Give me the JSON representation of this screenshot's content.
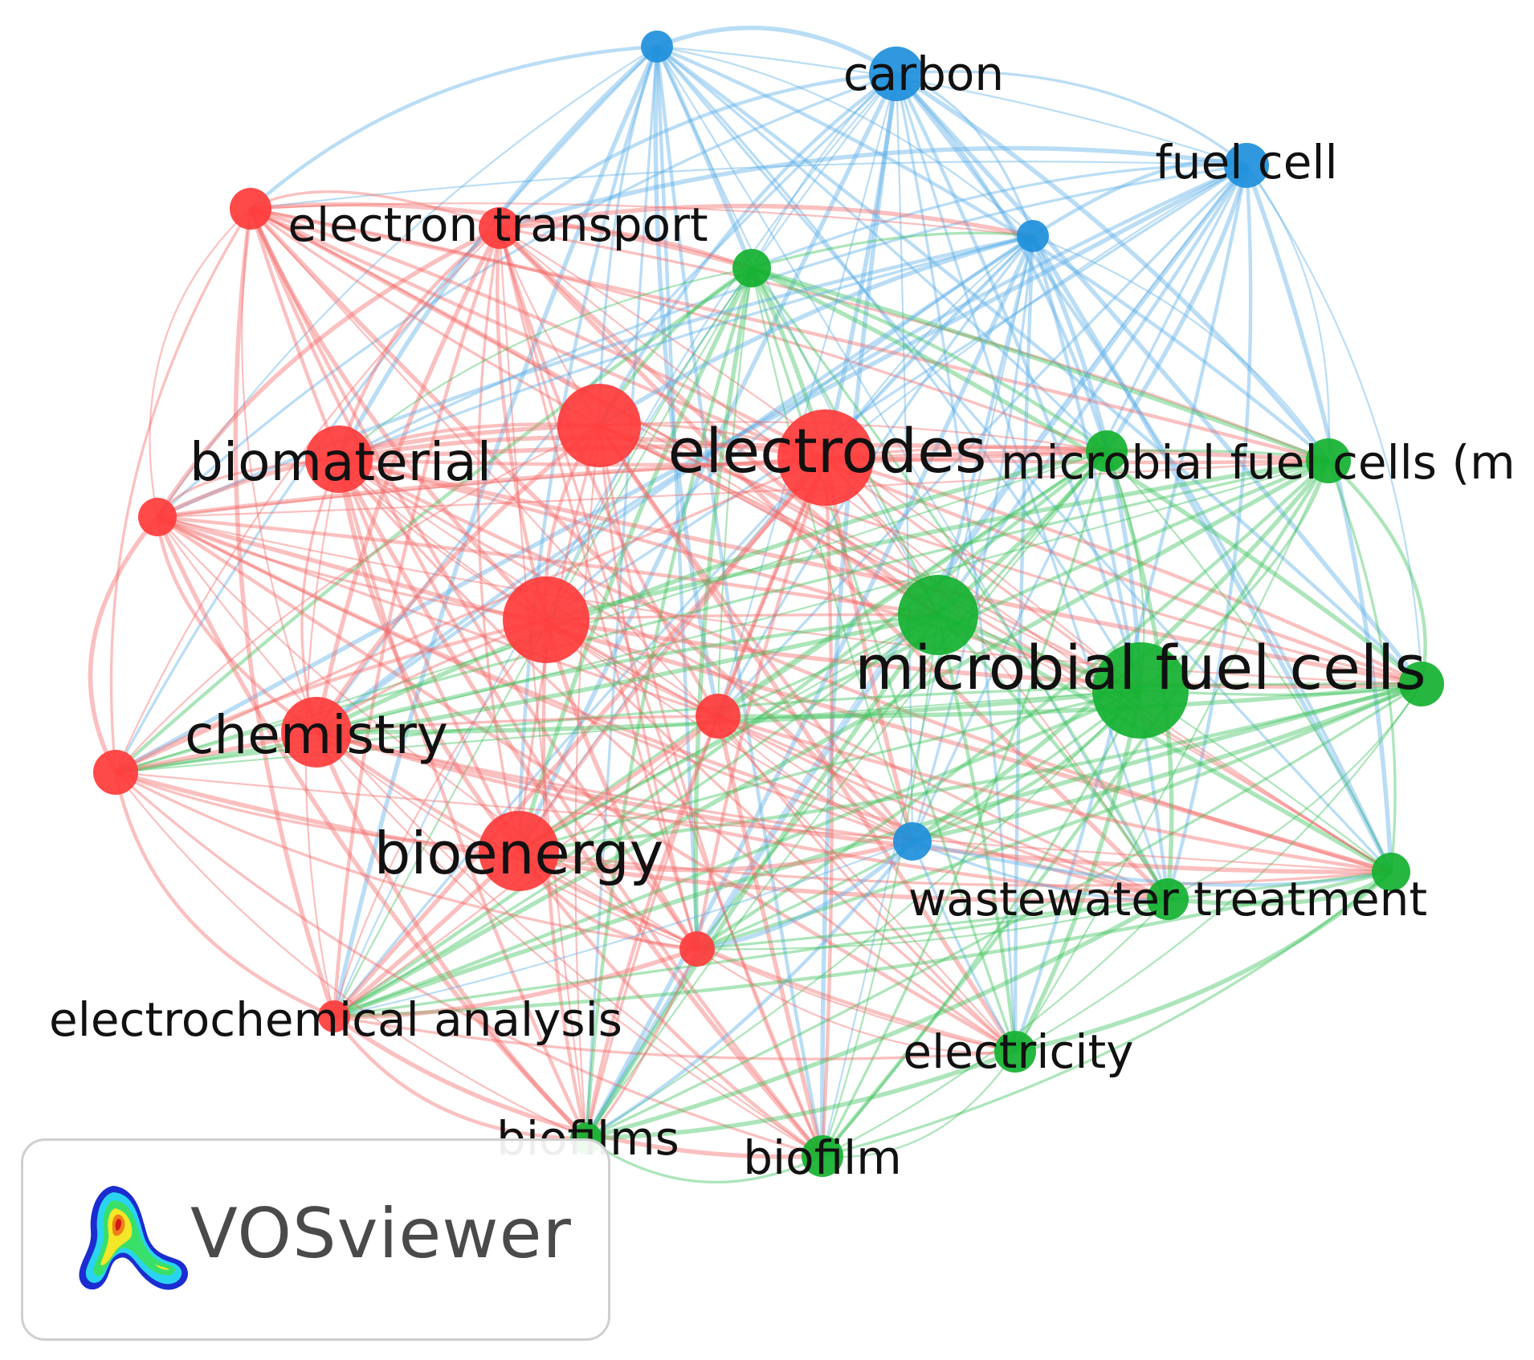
{
  "clusters": [
    {
      "id": "red",
      "color": "#ff3b3b",
      "edge_color": "#f26a66"
    },
    {
      "id": "green",
      "color": "#13b130",
      "edge_color": "#3cc15a"
    },
    {
      "id": "blue",
      "color": "#1e8fdb",
      "edge_color": "#5aaee6"
    }
  ],
  "nodes": [
    {
      "id": "n1",
      "label": "",
      "cluster": "blue",
      "size": 1.0
    },
    {
      "id": "n2",
      "label": "carbon",
      "cluster": "blue",
      "size": 1.7
    },
    {
      "id": "n3",
      "label": "fuel cell",
      "cluster": "blue",
      "size": 1.4
    },
    {
      "id": "n4",
      "label": "electron transport",
      "cluster": "red",
      "size": 1.3
    },
    {
      "id": "n5",
      "label": "",
      "cluster": "red",
      "size": 1.3
    },
    {
      "id": "n6",
      "label": "",
      "cluster": "green",
      "size": 1.2
    },
    {
      "id": "n7",
      "label": "",
      "cluster": "blue",
      "size": 1.0
    },
    {
      "id": "n8",
      "label": "",
      "cluster": "red",
      "size": 2.6
    },
    {
      "id": "n9",
      "label": "electrodes",
      "cluster": "red",
      "size": 3.0
    },
    {
      "id": "n10",
      "label": "biomaterial",
      "cluster": "red",
      "size": 2.1
    },
    {
      "id": "n11",
      "label": "",
      "cluster": "red",
      "size": 1.2
    },
    {
      "id": "n12",
      "label": "",
      "cluster": "green",
      "size": 1.3
    },
    {
      "id": "n13",
      "label": "microbial fuel cells (m",
      "cluster": "green",
      "size": 1.4
    },
    {
      "id": "n14",
      "label": "",
      "cluster": "red",
      "size": 2.7
    },
    {
      "id": "n15",
      "label": "",
      "cluster": "green",
      "size": 2.5
    },
    {
      "id": "n16",
      "label": "microbial fuel cells",
      "cluster": "green",
      "size": 3.0
    },
    {
      "id": "n17",
      "label": "",
      "cluster": "green",
      "size": 1.4
    },
    {
      "id": "n18",
      "label": "",
      "cluster": "red",
      "size": 1.4
    },
    {
      "id": "n19",
      "label": "chemistry",
      "cluster": "red",
      "size": 2.2
    },
    {
      "id": "n20",
      "label": "",
      "cluster": "red",
      "size": 1.4
    },
    {
      "id": "n21",
      "label": "bioenergy",
      "cluster": "red",
      "size": 2.5
    },
    {
      "id": "n22",
      "label": "",
      "cluster": "blue",
      "size": 1.2
    },
    {
      "id": "n23",
      "label": "wastewater treatment",
      "cluster": "green",
      "size": 1.3
    },
    {
      "id": "n24",
      "label": "",
      "cluster": "green",
      "size": 1.2
    },
    {
      "id": "n25",
      "label": "",
      "cluster": "red",
      "size": 1.1
    },
    {
      "id": "n26",
      "label": "electrochemical analysis",
      "cluster": "red",
      "size": 1.0
    },
    {
      "id": "n27",
      "label": "electricity",
      "cluster": "green",
      "size": 1.3
    },
    {
      "id": "n28",
      "label": "biofilms",
      "cluster": "green",
      "size": 1.0
    },
    {
      "id": "n29",
      "label": "biofilm",
      "cluster": "green",
      "size": 1.3
    }
  ],
  "logo": {
    "text": "VOSviewer",
    "icon": "vosviewer-heatmap-icon"
  }
}
